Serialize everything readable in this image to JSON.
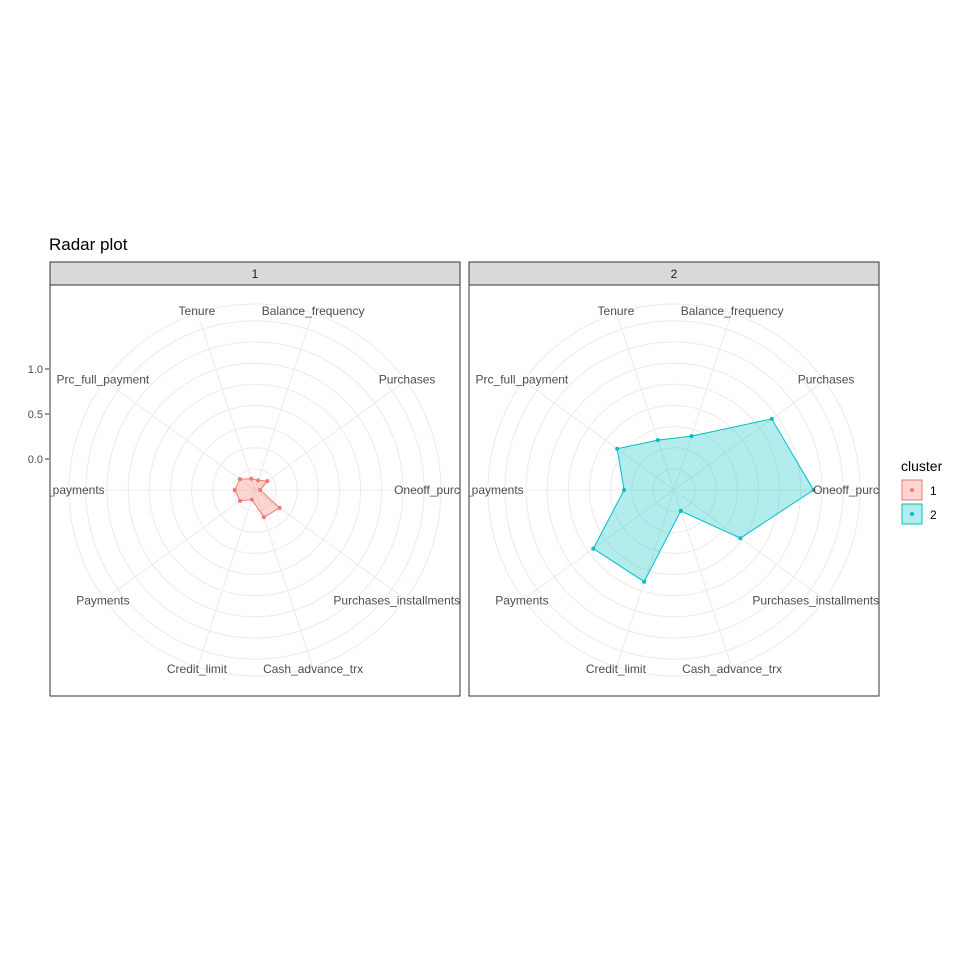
{
  "title": "Radar plot",
  "legend": {
    "title": "cluster",
    "position": "right"
  },
  "chart_data": {
    "type": "radar",
    "title": "Radar plot",
    "axes": [
      "Balance_frequency",
      "Purchases",
      "Oneoff_purchases",
      "Purchases_installments_frequency",
      "Cash_advance_trx",
      "Credit_limit",
      "Payments",
      "Minimum_payments",
      "Prc_full_payment",
      "Tenure"
    ],
    "axis_display_labels": [
      "Balance_frequency",
      "Purchases",
      "Oneoff_purchases",
      "Purchases_installments_fre",
      "Cash_advance_trx",
      "Credit_limit",
      "Payments",
      "um_payments",
      "Prc_full_payment",
      "Tenure"
    ],
    "radial_ticks": [
      "1.0",
      "0.5",
      "0.0"
    ],
    "rlim": [
      -0.5,
      1.7
    ],
    "grid": true,
    "facets": [
      "1",
      "2"
    ],
    "series": [
      {
        "name": "1",
        "facet": "1",
        "color": "#F8766D",
        "values": [
          -0.38,
          -0.32,
          -0.44,
          -0.14,
          -0.16,
          -0.38,
          -0.28,
          -0.26,
          -0.28,
          -0.36
        ]
      },
      {
        "name": "2",
        "facet": "2",
        "color": "#00BFC4",
        "values": [
          0.17,
          0.93,
          1.15,
          0.47,
          -0.24,
          0.64,
          0.68,
          0.09,
          0.33,
          0.12
        ]
      }
    ]
  },
  "colors": {
    "cluster1": "#F8766D",
    "cluster2": "#00BFC4",
    "strip_bg": "#D9D9D9",
    "grid": "#EBEBEB",
    "panel_border": "#333333"
  }
}
